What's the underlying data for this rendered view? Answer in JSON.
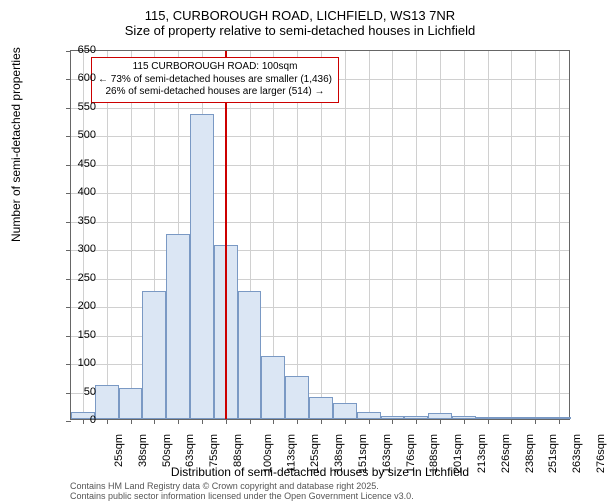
{
  "title": {
    "line1": "115, CURBOROUGH ROAD, LICHFIELD, WS13 7NR",
    "line2": "Size of property relative to semi-detached houses in Lichfield"
  },
  "chart": {
    "type": "histogram",
    "background_color": "#ffffff",
    "grid_color": "#d0d0d0",
    "axis_color": "#666666",
    "bar_fill": "#dbe6f4",
    "bar_border": "#7a99c4",
    "reference_line_color": "#cc0000",
    "reference_line_x": 100,
    "ylim": [
      0,
      650
    ],
    "ytick_step": 50,
    "x_categories": [
      "25sqm",
      "38sqm",
      "50sqm",
      "63sqm",
      "75sqm",
      "88sqm",
      "100sqm",
      "113sqm",
      "125sqm",
      "138sqm",
      "151sqm",
      "163sqm",
      "176sqm",
      "188sqm",
      "201sqm",
      "213sqm",
      "226sqm",
      "238sqm",
      "251sqm",
      "263sqm",
      "276sqm"
    ],
    "bar_values": [
      12,
      60,
      55,
      225,
      325,
      535,
      305,
      225,
      110,
      75,
      38,
      28,
      12,
      6,
      5,
      10,
      5,
      3,
      0,
      0,
      2
    ],
    "ylabel": "Number of semi-detached properties",
    "xlabel": "Distribution of semi-detached houses by size in Lichfield",
    "title_fontsize": 13,
    "label_fontsize": 12,
    "tick_fontsize": 11
  },
  "annotation": {
    "line1": "115 CURBOROUGH ROAD: 100sqm",
    "line2": "← 73% of semi-detached houses are smaller (1,436)",
    "line3": "26% of semi-detached houses are larger (514) →",
    "border_color": "#cc0000",
    "background_color": "#ffffff",
    "fontsize": 10
  },
  "footer": {
    "line1": "Contains HM Land Registry data © Crown copyright and database right 2025.",
    "line2": "Contains public sector information licensed under the Open Government Licence v3.0."
  }
}
